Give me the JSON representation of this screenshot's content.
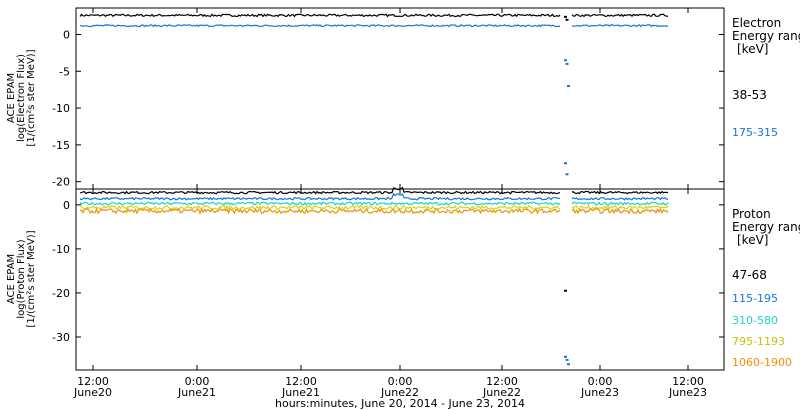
{
  "chart_data": [
    {
      "type": "line",
      "panel": "top",
      "ylabel": [
        "ACE EPAM",
        "log(Electron Flux)",
        "[1/(cm²s ster MeV)]"
      ],
      "ylim": [
        -21,
        3.6
      ],
      "yticks": [
        0,
        -5,
        -10,
        -15,
        -20
      ],
      "legend_title": [
        "Electron",
        "Energy range",
        "[keV]"
      ],
      "series": [
        {
          "name": "38-53",
          "color": "#000000",
          "level": 2.6,
          "noise": 0.15
        },
        {
          "name": "175-315",
          "color": "#1a73d9",
          "level": 1.2,
          "noise": 0.12
        }
      ],
      "gap_segment_values": [
        [
          2.4,
          2.0
        ],
        [
          -3.5,
          -4.0,
          -7.0
        ],
        [
          -17.5,
          -19.0
        ]
      ]
    },
    {
      "type": "line",
      "panel": "bottom",
      "ylabel": [
        "ACE EPAM",
        "log(Proton Flux)",
        "[1/(cm²s ster MeV)]"
      ],
      "ylim": [
        -37.5,
        3.6
      ],
      "yticks": [
        0,
        -10,
        -20,
        -30
      ],
      "legend_title": [
        "Proton",
        "Energy range",
        "[keV]"
      ],
      "series": [
        {
          "name": "47-68",
          "color": "#000000",
          "level": 2.8,
          "noise": 0.25
        },
        {
          "name": "115-195",
          "color": "#1a73d9",
          "level": 1.4,
          "noise": 0.25
        },
        {
          "name": "310-580",
          "color": "#1ed4c8",
          "level": 0.3,
          "noise": 0.3
        },
        {
          "name": "795-1193",
          "color": "#d8d21a",
          "level": -0.6,
          "noise": 0.4
        },
        {
          "name": "1060-1900",
          "color": "#f09000",
          "level": -1.4,
          "noise": 0.5
        }
      ],
      "gap_segment_values": [
        [
          -19.5
        ],
        [
          -34.5,
          -35.2,
          -36.2
        ]
      ]
    }
  ],
  "x_axis": {
    "tick_labels": [
      {
        "time": "12:00",
        "date": "June20"
      },
      {
        "time": "0:00",
        "date": "June21"
      },
      {
        "time": "12:00",
        "date": "June21"
      },
      {
        "time": "0:00",
        "date": "June22"
      },
      {
        "time": "12:00",
        "date": "June22"
      },
      {
        "time": "0:00",
        "date": "June23"
      },
      {
        "time": "12:00",
        "date": "June23"
      }
    ],
    "xlabel": "hours:minutes, June 20, 2014 - June 23, 2014"
  }
}
